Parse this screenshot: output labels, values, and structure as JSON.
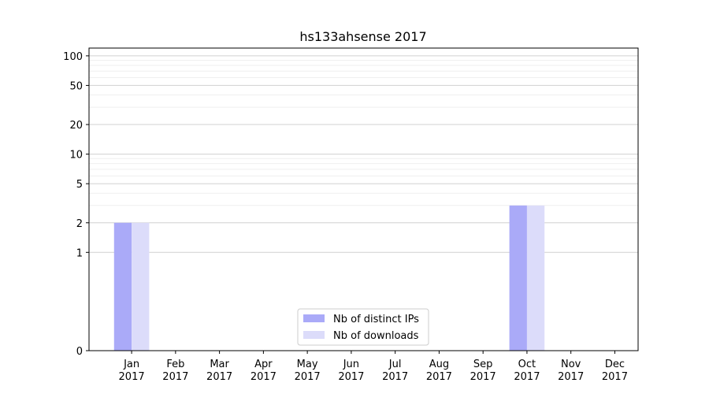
{
  "chart_data": {
    "type": "bar",
    "title": "hs133ahsense 2017",
    "xlabel": "",
    "ylabel": "",
    "yscale": "symlog",
    "ylim": [
      0,
      120
    ],
    "grid": true,
    "legend_position": "bottom-center",
    "categories": [
      "Jan\n2017",
      "Feb\n2017",
      "Mar\n2017",
      "Apr\n2017",
      "May\n2017",
      "Jun\n2017",
      "Jul\n2017",
      "Aug\n2017",
      "Sep\n2017",
      "Oct\n2017",
      "Nov\n2017",
      "Dec\n2017"
    ],
    "yticks": [
      0,
      1,
      2,
      5,
      10,
      20,
      50,
      100
    ],
    "ytick_labels": [
      "0",
      "1",
      "2",
      "5",
      "10",
      "20",
      "50",
      "100"
    ],
    "series": [
      {
        "name": "Nb of distinct IPs",
        "color": "#aaaaf8",
        "values": [
          2,
          0,
          0,
          0,
          0,
          0,
          0,
          0,
          0,
          3,
          0,
          0
        ]
      },
      {
        "name": "Nb of downloads",
        "color": "#dcdcfa",
        "values": [
          2,
          0,
          0,
          0,
          0,
          0,
          0,
          0,
          0,
          3,
          0,
          0
        ]
      }
    ]
  }
}
